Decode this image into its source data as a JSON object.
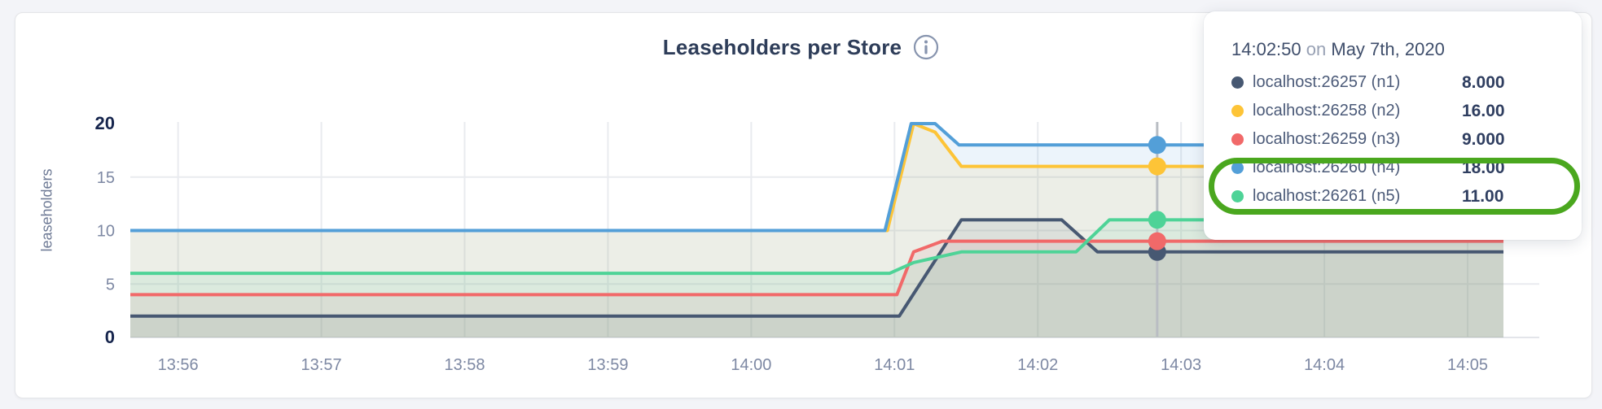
{
  "header": {
    "title": "Leaseholders per Store",
    "info_icon": "circle-i",
    "title_color": "#2e3d59",
    "icon_color": "#8794ae"
  },
  "tooltip": {
    "time": "14:02:50",
    "on_word": "on",
    "date": "May 7th, 2020",
    "rows": [
      {
        "name": "localhost:26257 (n1)",
        "value": "8.000",
        "color": "#475872"
      },
      {
        "name": "localhost:26258 (n2)",
        "value": "16.00",
        "color": "#fdc437"
      },
      {
        "name": "localhost:26259 (n3)",
        "value": "9.000",
        "color": "#f16969"
      },
      {
        "name": "localhost:26260 (n4)",
        "value": "18.00",
        "color": "#539fd8"
      },
      {
        "name": "localhost:26261 (n5)",
        "value": "11.00",
        "color": "#4ed397"
      }
    ],
    "annotation_color": "#4aa71e"
  },
  "chart_data": {
    "type": "area",
    "title": "Leaseholders per Store",
    "xlabel": "",
    "ylabel": "leaseholders",
    "ylim": [
      0,
      20
    ],
    "y_ticks": [
      0,
      5,
      10,
      15,
      20
    ],
    "grid": true,
    "legend_position": "tooltip-top-right",
    "x_tick_labels": [
      "13:56",
      "13:57",
      "13:58",
      "13:59",
      "14:00",
      "14:01",
      "14:02",
      "14:03",
      "14:04",
      "14:05"
    ],
    "x_tick_seconds": [
      20,
      80,
      140,
      200,
      260,
      320,
      380,
      440,
      500,
      560
    ],
    "x_domain_seconds": [
      0,
      590
    ],
    "data_end_second": 575,
    "crosshair_second": 430,
    "crosshair_time_label": "14:02:50",
    "colors": {
      "gridline": "#e9ebef",
      "baseline": "#e3e5ea",
      "crosshair": "#b9bdc3",
      "tick_label": "#7d88a3",
      "tick_label_bold": "#16254d"
    },
    "fill_opacity": 0.11,
    "series": [
      {
        "name": "localhost:26257 (n1)",
        "color": "#475872",
        "points": [
          [
            0,
            2
          ],
          [
            322,
            2
          ],
          [
            348,
            11
          ],
          [
            390,
            11
          ],
          [
            405,
            8
          ],
          [
            575,
            8
          ]
        ],
        "crosshair_value": 8
      },
      {
        "name": "localhost:26258 (n2)",
        "color": "#fdc437",
        "points": [
          [
            0,
            10
          ],
          [
            317,
            10
          ],
          [
            328,
            20
          ],
          [
            337,
            19.2
          ],
          [
            348,
            16
          ],
          [
            575,
            16
          ]
        ],
        "crosshair_value": 16
      },
      {
        "name": "localhost:26259 (n3)",
        "color": "#f16969",
        "points": [
          [
            0,
            4
          ],
          [
            321,
            4
          ],
          [
            328,
            8
          ],
          [
            340,
            9
          ],
          [
            575,
            9
          ]
        ],
        "crosshair_value": 9
      },
      {
        "name": "localhost:26260 (n4)",
        "color": "#539fd8",
        "points": [
          [
            0,
            10
          ],
          [
            316,
            10
          ],
          [
            327,
            20
          ],
          [
            337,
            20
          ],
          [
            347,
            18
          ],
          [
            575,
            18
          ]
        ],
        "crosshair_value": 18
      },
      {
        "name": "localhost:26261 (n5)",
        "color": "#4ed397",
        "points": [
          [
            0,
            6
          ],
          [
            318,
            6
          ],
          [
            328,
            7
          ],
          [
            348,
            8
          ],
          [
            396,
            8
          ],
          [
            410,
            11
          ],
          [
            575,
            11
          ]
        ],
        "crosshair_value": 11
      }
    ]
  }
}
